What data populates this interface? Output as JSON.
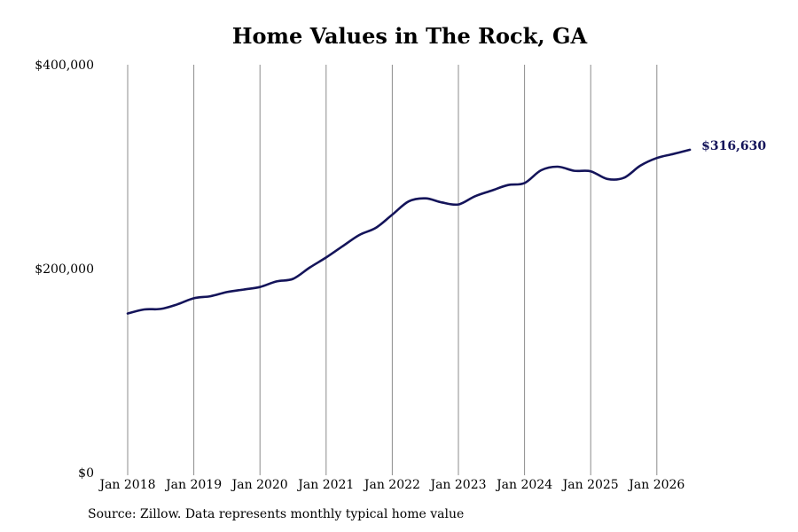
{
  "chart_data": {
    "type": "line",
    "title": "Home Values in The Rock, GA",
    "xlabel": "",
    "ylabel": "",
    "ylim": [
      0,
      400000
    ],
    "y_ticks": [
      0,
      200000,
      400000
    ],
    "y_tick_labels": [
      "$0",
      "$200,000",
      "$400,000"
    ],
    "x_tick_labels": [
      "Jan 2018",
      "Jan 2019",
      "Jan 2020",
      "Jan 2021",
      "Jan 2022",
      "Jan 2023",
      "Jan 2024",
      "Jan 2025",
      "Jan 2026"
    ],
    "x_range_years": [
      2018.0,
      2026.5
    ],
    "grid": "vertical",
    "line_color": "#14145a",
    "end_label": "$316,630",
    "series": [
      {
        "x": [
          2018.0,
          2018.25,
          2018.5,
          2018.75,
          2019.0,
          2019.25,
          2019.5,
          2019.75,
          2020.0,
          2020.25,
          2020.5,
          2020.75,
          2021.0,
          2021.25,
          2021.5,
          2021.75,
          2022.0,
          2022.25,
          2022.5,
          2022.75,
          2023.0,
          2023.25,
          2023.5,
          2023.75,
          2024.0,
          2024.25,
          2024.5,
          2024.75,
          2025.0,
          2025.25,
          2025.5,
          2025.75,
          2026.0,
          2026.25,
          2026.5
        ],
        "values": [
          156000,
          160000,
          160500,
          165000,
          171000,
          173000,
          177000,
          179500,
          182000,
          187500,
          190000,
          201000,
          211000,
          222000,
          233000,
          240000,
          253000,
          266000,
          269000,
          265000,
          263000,
          271000,
          276500,
          282000,
          284000,
          296500,
          300000,
          296000,
          295500,
          288000,
          289000,
          301000,
          308500,
          312500,
          316630
        ]
      }
    ]
  },
  "source_note": "Source: Zillow. Data represents monthly typical home value"
}
